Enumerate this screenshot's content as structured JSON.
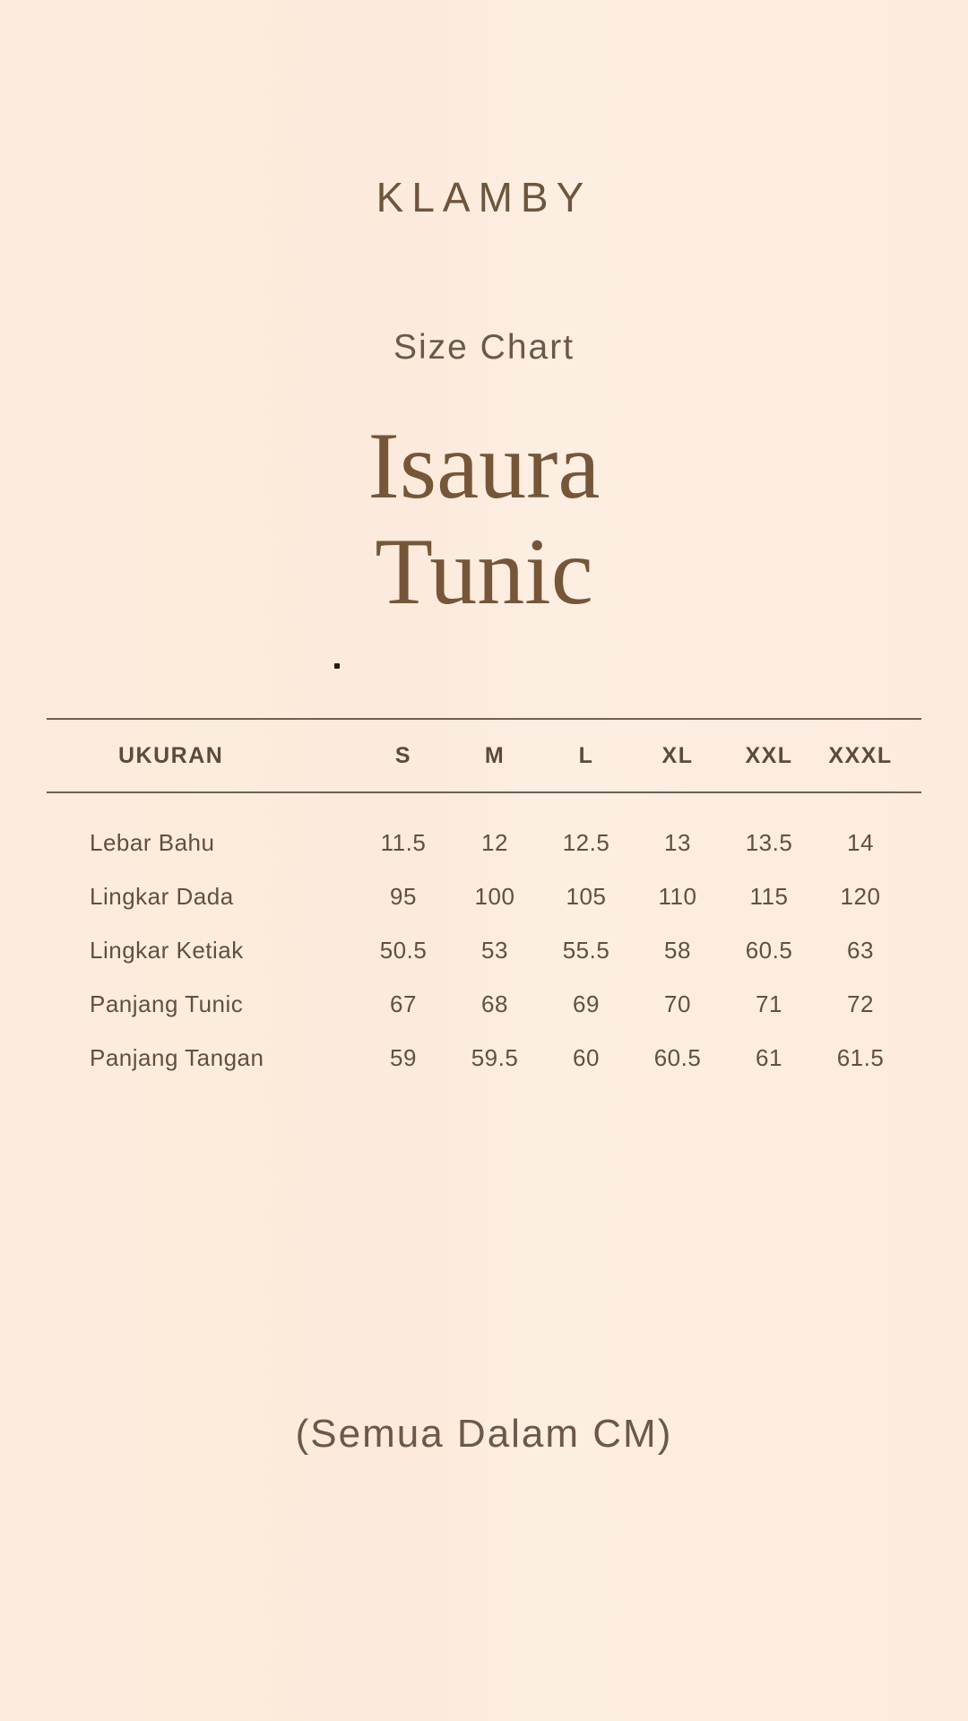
{
  "brand": {
    "logo_text": "KLAMBY"
  },
  "header": {
    "subtitle": "Size Chart",
    "title_line1": "Isaura",
    "title_line2": "Tunic"
  },
  "size_chart": {
    "columns": [
      "UKURAN",
      "S",
      "M",
      "L",
      "XL",
      "XXL",
      "XXXL"
    ],
    "rows": [
      {
        "label": "Lebar Bahu",
        "values": [
          "11.5",
          "12",
          "12.5",
          "13",
          "13.5",
          "14"
        ]
      },
      {
        "label": "Lingkar Dada",
        "values": [
          "95",
          "100",
          "105",
          "110",
          "115",
          "120"
        ]
      },
      {
        "label": "Lingkar Ketiak",
        "values": [
          "50.5",
          "53",
          "55.5",
          "58",
          "60.5",
          "63"
        ]
      },
      {
        "label": "Panjang Tunic",
        "values": [
          "67",
          "68",
          "69",
          "70",
          "71",
          "72"
        ]
      },
      {
        "label": "Panjang Tangan",
        "values": [
          "59",
          "59.5",
          "60",
          "60.5",
          "61",
          "61.5"
        ]
      }
    ]
  },
  "footer": {
    "note": "(Semua Dalam CM)"
  },
  "colors": {
    "background": "#fdecde",
    "brand_text": "#6e553c",
    "title_text": "#765638",
    "table_header_text": "#5d4a39",
    "table_body_text": "#60503f",
    "rule_line": "#6f6052"
  }
}
